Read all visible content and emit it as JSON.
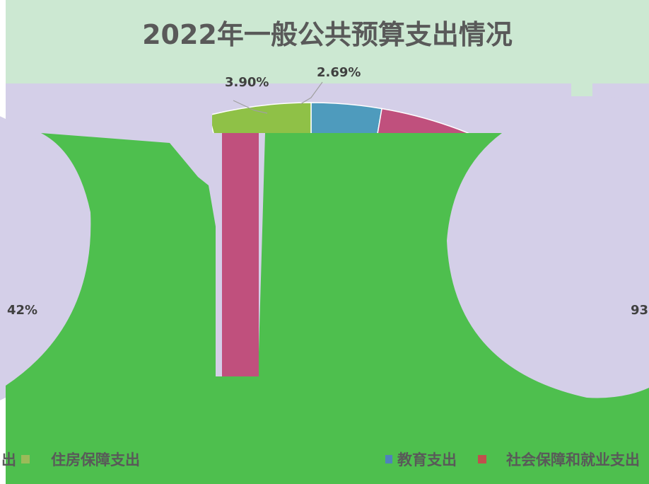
{
  "chart_data": {
    "type": "pie",
    "title": "2022年一般公共预算支出情况",
    "slices": [
      {
        "name": "教育支出",
        "label": "2.69%",
        "value": 2.69,
        "color": "#4e9bbd"
      },
      {
        "name": "社会保障和就业支出",
        "label": "",
        "value": 18.5,
        "color": "#c0507d"
      },
      {
        "name": "住房保障支出",
        "label": "3.90%",
        "value": 3.9,
        "color": "#8fc147"
      }
    ],
    "partial_labels": [
      "42%",
      "93"
    ],
    "legend": [
      {
        "name": "住房保障支出",
        "color": "#9bbb59"
      },
      {
        "name": "教育支出",
        "color": "#4f81bd"
      },
      {
        "name": "社会保障和就业支出",
        "color": "#c0504d"
      }
    ],
    "legend_leading_fragment": "出",
    "colors": {
      "plot_background": "#d4cfe8",
      "title_band": "#cce8d2",
      "overflow_fill": "#4ebf4e"
    }
  }
}
